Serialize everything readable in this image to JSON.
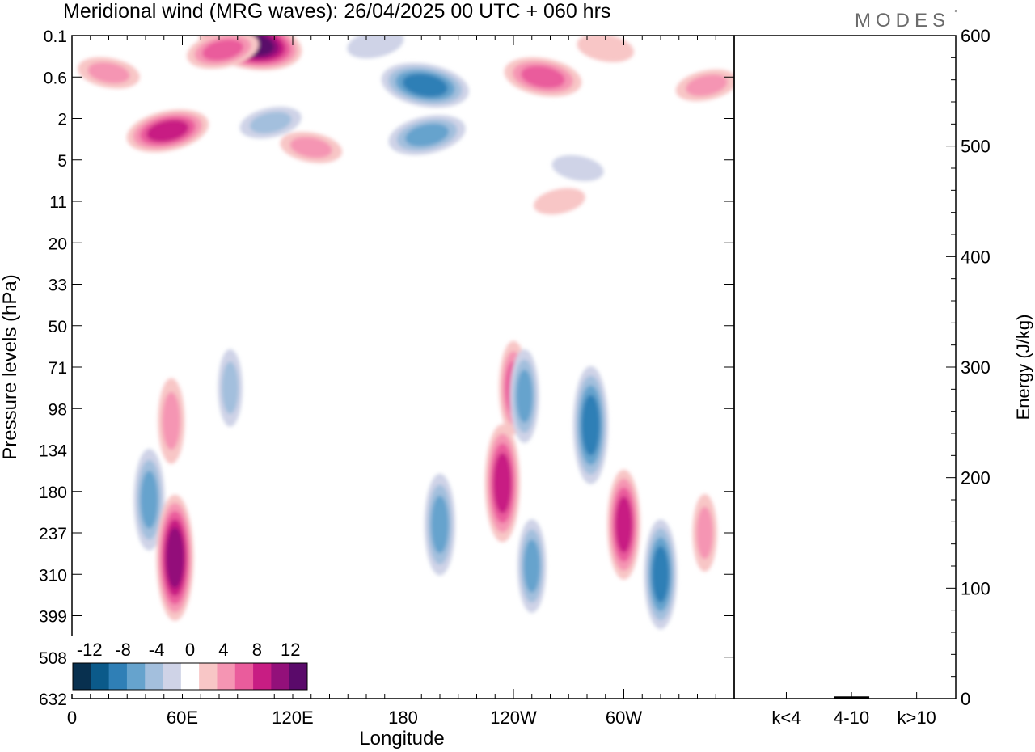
{
  "brand": {
    "name": "MODES",
    "mark": "°"
  },
  "chart_data": [
    {
      "type": "heatmap",
      "title": "Meridional wind (MRG waves):  26/04/2025  00 UTC  + 060 hrs",
      "xlabel": "Longitude",
      "ylabel": "Pressure levels (hPa)",
      "x_ticks": [
        "0",
        "60E",
        "120E",
        "180",
        "120W",
        "60W"
      ],
      "x_tick_values": [
        0,
        60,
        120,
        180,
        240,
        300
      ],
      "xlim": [
        0,
        360
      ],
      "y_levels": [
        "0.1",
        "0.6",
        "2",
        "5",
        "11",
        "20",
        "33",
        "50",
        "71",
        "98",
        "134",
        "180",
        "237",
        "310",
        "399",
        "508",
        "632"
      ],
      "y_scale": "pressure levels (top = 0.1 hPa, bottom = 632 hPa)",
      "colorbar": {
        "labels": [
          "-12",
          "-8",
          "-4",
          "0",
          "4",
          "8",
          "12"
        ],
        "levels": [
          -14,
          -12,
          -10,
          -8,
          -6,
          -4,
          -2,
          2,
          4,
          6,
          8,
          10,
          12,
          14
        ],
        "colors": [
          "#08304f",
          "#0b5a8a",
          "#2f7fb6",
          "#66a3cd",
          "#a3bfdd",
          "#cfd3e7",
          "#ffffff",
          "#f8c6c6",
          "#f595b3",
          "#ea5c9c",
          "#c81d83",
          "#93107a",
          "#5a0a6a"
        ]
      },
      "features": [
        {
          "lon": 97,
          "level": 0.2,
          "value": 12
        },
        {
          "lon": 82,
          "level": 0.35,
          "value": 6
        },
        {
          "lon": 192,
          "level": 1.2,
          "value": -9
        },
        {
          "lon": 193,
          "level": 2.4,
          "value": -7
        },
        {
          "lon": 256,
          "level": 1.0,
          "value": 7
        },
        {
          "lon": 52,
          "level": 2.3,
          "value": 8
        },
        {
          "lon": 130,
          "level": 2.7,
          "value": 4
        },
        {
          "lon": 345,
          "level": 1.2,
          "value": 4
        },
        {
          "lon": 290,
          "level": 0.3,
          "value": 3
        },
        {
          "lon": 108,
          "level": 2.1,
          "value": -4
        },
        {
          "lon": 20,
          "level": 0.9,
          "value": 4
        },
        {
          "lon": 165,
          "level": 0.2,
          "value": -3
        },
        {
          "lon": 275,
          "level": 3.2,
          "value": -2
        },
        {
          "lon": 265,
          "level": 4.0,
          "value": 2
        },
        {
          "lon": 54,
          "level": 9.3,
          "value": 5
        },
        {
          "lon": 42,
          "level": 11.2,
          "value": -7
        },
        {
          "lon": 56,
          "level": 12.6,
          "value": 10
        },
        {
          "lon": 240,
          "level": 8.5,
          "value": 6
        },
        {
          "lon": 246,
          "level": 8.7,
          "value": -6
        },
        {
          "lon": 282,
          "level": 9.4,
          "value": -9
        },
        {
          "lon": 300,
          "level": 11.8,
          "value": 8
        },
        {
          "lon": 320,
          "level": 13.0,
          "value": -8
        },
        {
          "lon": 200,
          "level": 11.8,
          "value": -7
        },
        {
          "lon": 234,
          "level": 10.8,
          "value": 9
        },
        {
          "lon": 250,
          "level": 12.8,
          "value": -6
        },
        {
          "lon": 344,
          "level": 12.0,
          "value": 4
        },
        {
          "lon": 86,
          "level": 8.5,
          "value": -4
        }
      ]
    },
    {
      "type": "bar",
      "categories": [
        "k<4",
        "4-10",
        "k>10"
      ],
      "values": [
        0,
        2,
        0
      ],
      "ylabel": "Energy (J/kg)",
      "ylim": [
        0,
        600
      ],
      "y_ticks": [
        "0",
        "100",
        "200",
        "300",
        "400",
        "500",
        "600"
      ]
    }
  ]
}
